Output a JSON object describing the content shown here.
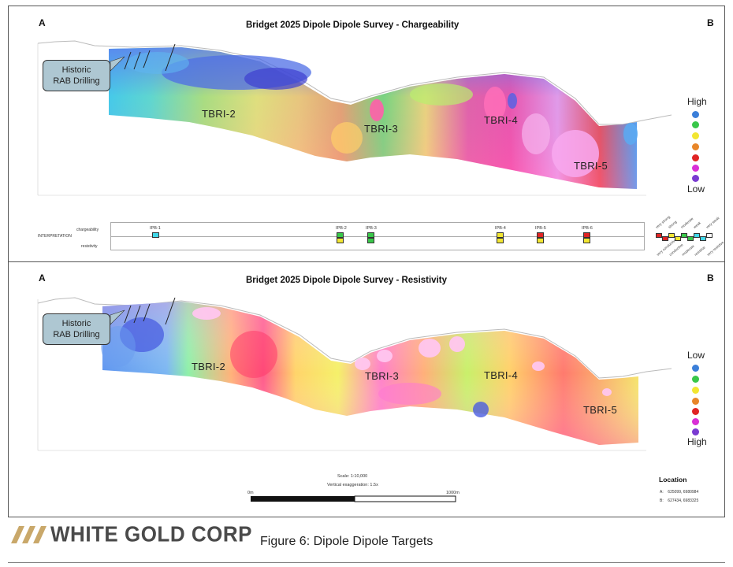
{
  "figure_caption": "Figure 6: Dipole Dipole Targets",
  "logo_text": "WHITE GOLD CORP",
  "panels": {
    "top": {
      "title": "Bridget 2025 Dipole Dipole Survey - Chargeability",
      "corner_a": "A",
      "corner_b": "B",
      "callout_line1": "Historic",
      "callout_line2": "RAB Drilling",
      "targets": [
        "TBRI-2",
        "TBRI-3",
        "TBRI-4",
        "TBRI-5"
      ],
      "legend_top": "High",
      "legend_bottom": "Low"
    },
    "bottom": {
      "title": "Bridget 2025 Dipole Dipole Survey - Resistivity",
      "corner_a": "A",
      "corner_b": "B",
      "callout_line1": "Historic",
      "callout_line2": "RAB Drilling",
      "targets": [
        "TBRI-2",
        "TBRI-3",
        "TBRI-4",
        "TBRI-5"
      ],
      "legend_top": "Low",
      "legend_bottom": "High"
    }
  },
  "legend_colors": [
    "#3b7fd9",
    "#39c74a",
    "#f2e632",
    "#e8862a",
    "#e02424",
    "#d92fd6",
    "#7a3bd1"
  ],
  "interpretation": {
    "label": "INTERPRETATION",
    "row1": "chargeability",
    "row2": "resistivity",
    "blocks": [
      {
        "label": "IPB-1",
        "top": "#41d7e8",
        "bottom": ""
      },
      {
        "label": "IPB-2",
        "top": "#39c74a",
        "bottom": "#f2e632"
      },
      {
        "label": "IPB-3",
        "top": "#39c74a",
        "bottom": "#39c74a"
      },
      {
        "label": "IPB-4",
        "top": "#f2e632",
        "bottom": "#f2e632"
      },
      {
        "label": "IPB-5",
        "top": "#e02424",
        "bottom": "#f2e632"
      },
      {
        "label": "IPB-6",
        "top": "#e02424",
        "bottom": "#f2e632"
      }
    ],
    "key_terms": [
      "very strong",
      "strong",
      "moderate",
      "weak",
      "very weak",
      "very conductive",
      "conductive",
      "moderate",
      "resistive",
      "very resistive"
    ]
  },
  "scale": {
    "scale_text": "Scale: 1:10,000",
    "exaggeration_text": "Vertical exaggeration: 1.5x",
    "left_label": "0m",
    "right_label": "1000m"
  },
  "location": {
    "title": "Location",
    "a_label": "A:",
    "a_value": "625099, 6980984",
    "b_label": "B:",
    "b_value": "627434, 6983325"
  }
}
